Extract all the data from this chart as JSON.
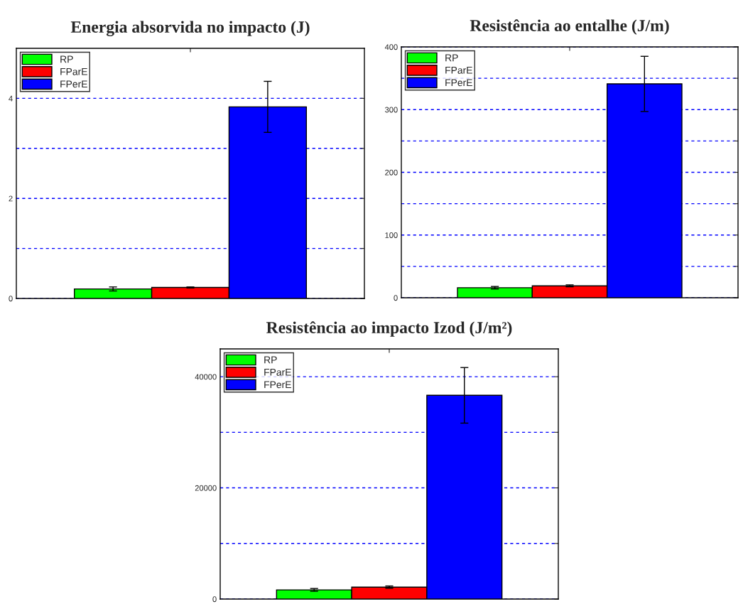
{
  "chart_data": [
    {
      "type": "bar",
      "title": "Energia absorvida no impacto (J)",
      "categories": [
        null
      ],
      "ylim": [
        0,
        5
      ],
      "yticks": [
        0,
        {
          "value": 1,
          "label": null
        },
        2,
        {
          "value": 3,
          "label": null
        },
        4
      ],
      "grid": "y",
      "legend": "top left",
      "tick_labels": "y",
      "series": [
        {
          "name": "RP",
          "color": "#00ff00",
          "values": [
            0.19
          ],
          "errors": [
            0.04
          ]
        },
        {
          "name": "FParE",
          "color": "#ff0000",
          "values": [
            0.22
          ],
          "errors": [
            0.01
          ]
        },
        {
          "name": "FPerE",
          "color": "#0000ff",
          "values": [
            3.83
          ],
          "errors": [
            0.51
          ]
        }
      ]
    },
    {
      "type": "bar",
      "title": "Resistência ao entalhe (J/m)",
      "categories": [
        null
      ],
      "ylim": [
        0,
        400
      ],
      "yticks": [
        0,
        {
          "value": 50,
          "label": null
        },
        100,
        {
          "value": 150,
          "label": null
        },
        200,
        {
          "value": 250,
          "label": null
        },
        300,
        {
          "value": 350,
          "label": null
        },
        400
      ],
      "grid": "y",
      "legend": "top left",
      "tick_labels": "y",
      "series": [
        {
          "name": "RP",
          "color": "#00ff00",
          "values": [
            16
          ],
          "errors": [
            2
          ]
        },
        {
          "name": "FParE",
          "color": "#ff0000",
          "values": [
            19
          ],
          "errors": [
            1.5
          ]
        },
        {
          "name": "FPerE",
          "color": "#0000ff",
          "values": [
            341
          ],
          "errors": [
            44
          ]
        }
      ]
    },
    {
      "type": "bar",
      "title": "Resistência ao impacto Izod (J/m²)",
      "categories": [
        null
      ],
      "ylim": [
        0,
        45000
      ],
      "yticks": [
        0,
        {
          "value": 10000,
          "label": null
        },
        20000,
        {
          "value": 30000,
          "label": null
        },
        40000
      ],
      "grid": "y",
      "legend": "top left",
      "tick_labels": "y",
      "series": [
        {
          "name": "RP",
          "color": "#00ff00",
          "values": [
            1650
          ],
          "errors": [
            250
          ]
        },
        {
          "name": "FParE",
          "color": "#ff0000",
          "values": [
            2150
          ],
          "errors": [
            200
          ]
        },
        {
          "name": "FPerE",
          "color": "#0000ff",
          "values": [
            36650
          ],
          "errors": [
            5000
          ]
        }
      ]
    }
  ]
}
